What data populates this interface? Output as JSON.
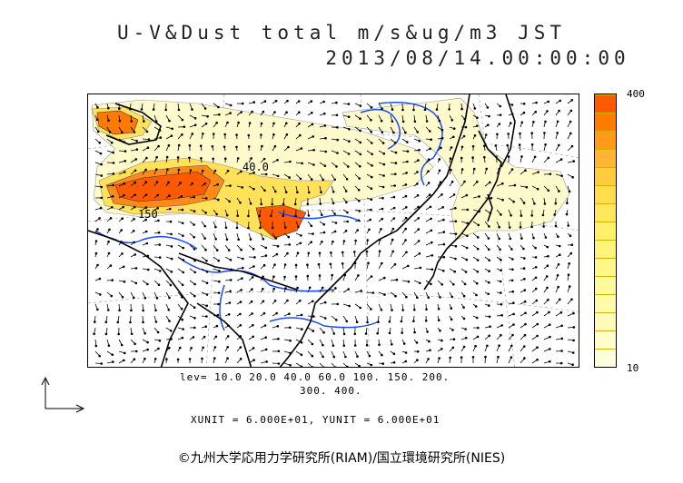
{
  "title": {
    "line1": "U-V&Dust total m/s&ug/m3 JST",
    "line2": "2013/08/14.00:00:00"
  },
  "colorbar": {
    "max_label": "400",
    "min_label": "10",
    "colors": [
      "#ff5a00",
      "#ff7c00",
      "#ff9a1a",
      "#ffb433",
      "#ffcc40",
      "#ffdd4d",
      "#ffe85c",
      "#fff06b",
      "#fff47a",
      "#fff889",
      "#fffa99",
      "#fffbaa",
      "#fffcbb",
      "#fffdcc",
      "#fffedd"
    ]
  },
  "levels": {
    "line1": "lev= 10.0 20.0 40.0 60.0 100. 150. 200.",
    "line2": "300. 400."
  },
  "units": "XUNIT = 6.000E+01, YUNIT = 6.000E+01",
  "copyright": "©九州大学応用力学研究所(RIAM)/国立環境研究所(NIES)",
  "contour_labels": [
    "40.0",
    "150"
  ],
  "colors": {
    "coast": "#000000",
    "rivers": "#1a4cff",
    "high_dust": "#ff5a00",
    "mid_dust": "#ffcc40",
    "low_dust": "#fff6a8"
  }
}
